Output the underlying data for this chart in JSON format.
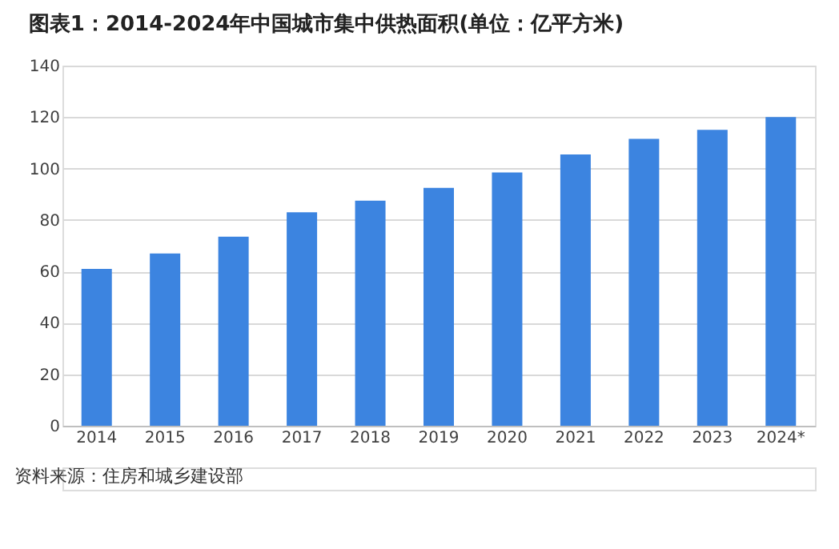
{
  "chart_data": {
    "type": "bar",
    "title": "图表1：2014-2024年中国城市集中供热面积(单位：亿平方米)",
    "categories": [
      "2014",
      "2015",
      "2016",
      "2017",
      "2018",
      "2019",
      "2020",
      "2021",
      "2022",
      "2023",
      "2024*"
    ],
    "values": [
      61,
      67,
      73.5,
      83,
      87.5,
      92.5,
      98.5,
      105.5,
      111.5,
      115,
      120
    ],
    "color": "#3c84e0",
    "ylim": [
      0,
      140
    ],
    "yticks": [
      0,
      20,
      40,
      60,
      80,
      100,
      120,
      140
    ],
    "grid": "y",
    "annotations": [
      "资料来源：住房和城乡建设部"
    ]
  }
}
